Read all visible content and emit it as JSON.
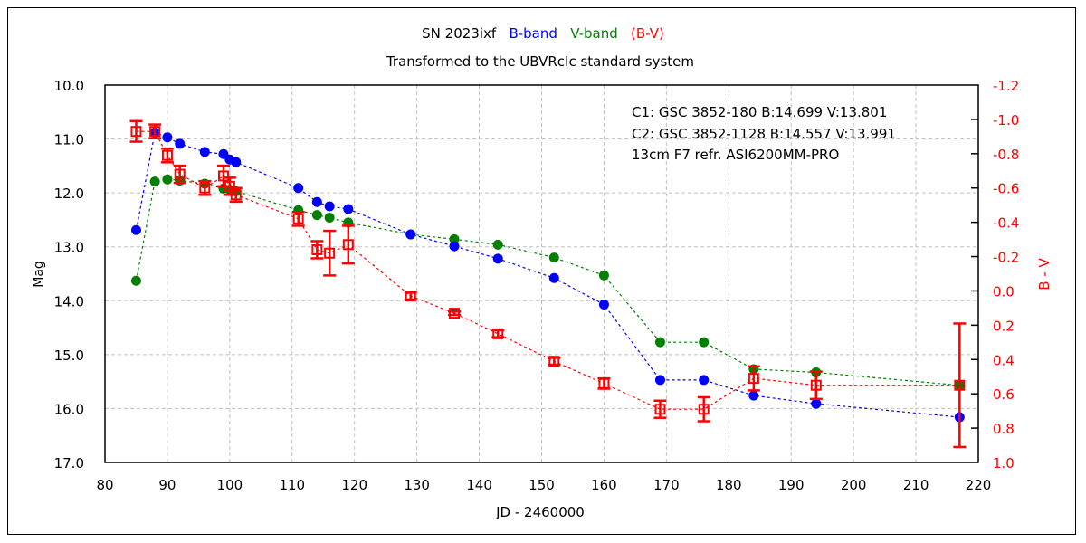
{
  "chart_data": {
    "type": "line",
    "title_parts": [
      {
        "text": "SN 2023ixf",
        "color": "#000000"
      },
      {
        "text": "B-band",
        "color": "#0000ff"
      },
      {
        "text": "V-band",
        "color": "#007f00"
      },
      {
        "text": "(B-V)",
        "color": "#ff0000"
      }
    ],
    "subtitle": "Transformed to the UBVRcIc standard system",
    "annotations": [
      "C1: GSC 3852-180  B:14.699  V:13.801",
      "C2: GSC 3852-1128  B:14.557  V:13.991",
      "13cm F7 refr.  ASI6200MM-PRO"
    ],
    "xlabel": "JD - 2460000",
    "ylabel": "Mag",
    "y2label": "B - V",
    "xlim": [
      80,
      220
    ],
    "ylim": [
      10.0,
      17.0
    ],
    "y_inverted": true,
    "y2lim": [
      -1.2,
      1.0
    ],
    "x_ticks": [
      80,
      90,
      100,
      110,
      120,
      130,
      140,
      150,
      160,
      170,
      180,
      190,
      200,
      210,
      220
    ],
    "y_ticks": [
      "10.0",
      "11.0",
      "12.0",
      "13.0",
      "14.0",
      "15.0",
      "16.0",
      "17.0"
    ],
    "y2_ticks": [
      "-1.2",
      "-1.0",
      "-0.8",
      "-0.6",
      "-0.4",
      "-0.2",
      "0.0",
      "0.2",
      "0.4",
      "0.6",
      "0.8",
      "1.0"
    ],
    "grid": true,
    "series": [
      {
        "name": "B-band",
        "axis": "left",
        "color": "#0000ff",
        "marker": "circle",
        "x": [
          85,
          88,
          90,
          92,
          96,
          99,
          100,
          101,
          111,
          114,
          116,
          119,
          129,
          136,
          143,
          152,
          160,
          169,
          176,
          184,
          194,
          217
        ],
        "y": [
          12.69,
          10.88,
          10.97,
          11.09,
          11.24,
          11.28,
          11.38,
          11.43,
          11.91,
          12.17,
          12.25,
          12.3,
          12.77,
          12.99,
          13.22,
          13.58,
          14.07,
          15.47,
          15.47,
          15.76,
          15.91,
          16.16
        ]
      },
      {
        "name": "V-band",
        "axis": "left",
        "color": "#007f00",
        "marker": "circle",
        "x": [
          85,
          88,
          90,
          92,
          96,
          99,
          100,
          101,
          111,
          114,
          116,
          119,
          129,
          136,
          143,
          152,
          160,
          169,
          176,
          184,
          194,
          217
        ],
        "y": [
          13.63,
          11.79,
          11.75,
          11.77,
          11.83,
          11.92,
          11.94,
          11.97,
          12.32,
          12.41,
          12.46,
          12.55,
          12.77,
          12.86,
          12.96,
          13.2,
          13.53,
          14.77,
          14.77,
          15.27,
          15.33,
          15.57
        ]
      },
      {
        "name": "(B-V)",
        "axis": "right",
        "color": "#ff0000",
        "marker": "open-square",
        "x": [
          85,
          88,
          90,
          92,
          96,
          99,
          100,
          101,
          111,
          114,
          116,
          119,
          129,
          136,
          143,
          152,
          160,
          169,
          176,
          184,
          194,
          217
        ],
        "y": [
          -0.93,
          -0.93,
          -0.79,
          -0.68,
          -0.6,
          -0.67,
          -0.61,
          -0.56,
          -0.42,
          -0.24,
          -0.22,
          -0.27,
          0.03,
          0.13,
          0.25,
          0.41,
          0.54,
          0.69,
          0.69,
          0.51,
          0.55,
          0.55
        ],
        "err": [
          0.06,
          0.04,
          0.04,
          0.05,
          0.04,
          0.06,
          0.05,
          0.04,
          0.04,
          0.05,
          0.13,
          0.11,
          0.02,
          0.01,
          0.02,
          0.02,
          0.03,
          0.05,
          0.07,
          0.07,
          0.08,
          0.36
        ]
      }
    ]
  }
}
